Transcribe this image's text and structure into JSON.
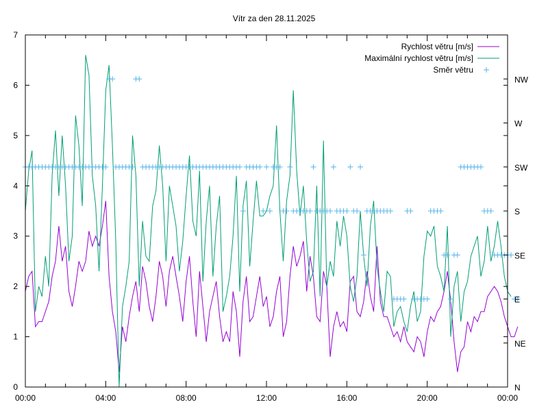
{
  "chart_data": {
    "type": "line",
    "title": "Vítr za den 28.11.2025",
    "xlabel": "",
    "ylabel": "",
    "x_tick_labels": [
      "00:00",
      "04:00",
      "08:00",
      "12:00",
      "16:00",
      "20:00",
      "00:00"
    ],
    "x_range_hours": [
      0,
      24
    ],
    "y_tick_labels": [
      "0",
      "1",
      "2",
      "3",
      "4",
      "5",
      "6",
      "7"
    ],
    "ylim": [
      0,
      7
    ],
    "y2_tick_labels": [
      "N",
      "NE",
      "E",
      "SE",
      "S",
      "SW",
      "W",
      "NW"
    ],
    "y2_range_direction_index": [
      0,
      8
    ],
    "grid": false,
    "legend_position": "top-right",
    "legend": [
      {
        "label": "Rychlost větru [m/s]",
        "style": "line",
        "color": "#9400d3"
      },
      {
        "label": "Maximální rychlost větru [m/s]",
        "style": "line",
        "color": "#009e73"
      },
      {
        "label": "Směr větru",
        "style": "points",
        "color": "#56b4e9"
      }
    ],
    "x_hours_step": 0.1667,
    "series": [
      {
        "name": "Rychlost větru [m/s]",
        "color": "#9400d3",
        "values": [
          1.9,
          2.2,
          2.3,
          1.2,
          1.3,
          1.3,
          1.5,
          1.7,
          2.2,
          2.5,
          3.2,
          2.5,
          2.8,
          1.9,
          1.6,
          2.0,
          2.5,
          2.3,
          2.5,
          3.1,
          2.8,
          3.0,
          2.8,
          3.2,
          3.7,
          2.2,
          1.5,
          1.1,
          0.3,
          1.2,
          0.9,
          1.4,
          1.8,
          2.1,
          1.5,
          2.4,
          2.1,
          1.6,
          1.3,
          1.8,
          2.5,
          2.2,
          1.6,
          2.3,
          2.6,
          2.2,
          1.8,
          1.3,
          2.1,
          2.6,
          1.7,
          1.0,
          2.3,
          1.6,
          0.9,
          1.5,
          1.8,
          2.1,
          1.4,
          0.9,
          1.1,
          0.9,
          1.9,
          1.5,
          0.6,
          1.7,
          2.2,
          1.3,
          1.4,
          1.8,
          2.2,
          1.6,
          1.8,
          1.2,
          1.4,
          1.9,
          2.2,
          1.0,
          1.3,
          2.2,
          2.8,
          2.4,
          2.6,
          2.9,
          1.9,
          2.6,
          2.2,
          1.4,
          1.3,
          2.3,
          2.0,
          0.6,
          1.2,
          1.5,
          1.2,
          1.3,
          1.1,
          2.1,
          2.2,
          1.5,
          1.4,
          1.7,
          2.3,
          1.8,
          1.5,
          2.8,
          1.7,
          1.4,
          1.4,
          1.2,
          1.0,
          1.1,
          0.9,
          1.2,
          0.9,
          0.8,
          0.7,
          1.0,
          0.9,
          0.6,
          1.1,
          1.4,
          1.3,
          1.5,
          1.6,
          1.9,
          2.3,
          1.7,
          0.9,
          0.3,
          0.7,
          0.8,
          1.3,
          1.1,
          1.4,
          1.3,
          1.5,
          1.5,
          1.8,
          1.9,
          2.0,
          1.9,
          1.7,
          1.4,
          1.2,
          1.0,
          1.0,
          1.2
        ]
      },
      {
        "name": "Maximální rychlost větru [m/s]",
        "color": "#009e73",
        "values": [
          3.5,
          4.3,
          4.7,
          1.5,
          2.0,
          1.8,
          2.6,
          2.0,
          4.2,
          5.1,
          3.8,
          5.0,
          4.0,
          2.5,
          3.0,
          5.4,
          4.8,
          3.6,
          6.6,
          6.2,
          4.2,
          3.6,
          2.3,
          4.0,
          5.9,
          6.4,
          4.8,
          2.9,
          0.0,
          1.6,
          2.0,
          2.5,
          5.0,
          4.2,
          2.0,
          3.3,
          2.6,
          2.5,
          3.6,
          3.9,
          4.8,
          4.0,
          2.5,
          4.0,
          3.6,
          3.2,
          2.3,
          2.9,
          3.8,
          4.6,
          3.3,
          3.0,
          4.3,
          2.1,
          3.3,
          4.0,
          2.2,
          3.2,
          3.8,
          1.5,
          1.8,
          2.2,
          3.0,
          4.2,
          1.9,
          3.6,
          4.1,
          2.4,
          3.3,
          4.1,
          3.4,
          3.4,
          3.5,
          3.8,
          4.0,
          5.2,
          3.5,
          2.5,
          3.7,
          4.2,
          5.9,
          4.3,
          3.4,
          4.0,
          2.9,
          2.1,
          2.3,
          4.0,
          1.8,
          4.9,
          2.0,
          2.5,
          2.2,
          3.3,
          2.8,
          3.4,
          3.0,
          2.0,
          1.7,
          2.2,
          3.5,
          2.6,
          2.0,
          3.2,
          3.7,
          2.4,
          1.9,
          1.5,
          2.3,
          2.2,
          1.2,
          1.5,
          1.6,
          1.3,
          1.1,
          1.6,
          1.9,
          1.3,
          1.5,
          2.6,
          3.1,
          3.0,
          3.2,
          2.4,
          2.2,
          1.9,
          3.2,
          1.0,
          2.0,
          2.3,
          1.3,
          1.9,
          2.1,
          2.6,
          2.8,
          3.0,
          2.2,
          2.5,
          3.2,
          2.5,
          2.8,
          3.3,
          2.8,
          2.2,
          1.9,
          1.8
        ]
      },
      {
        "name": "Směr větru",
        "color": "#56b4e9",
        "style": "points",
        "direction_labels": [
          "N",
          "NE",
          "E",
          "SE",
          "S",
          "SW",
          "W",
          "NW"
        ],
        "values_direction_index": [
          5,
          5,
          5,
          5,
          5,
          5,
          5,
          5,
          5,
          5,
          5,
          5,
          5,
          5,
          5,
          5,
          5,
          5,
          5,
          5,
          5,
          5,
          5,
          5,
          5,
          7,
          7,
          5,
          5,
          5,
          5,
          5,
          5,
          7,
          7,
          5,
          5,
          5,
          5,
          5,
          5,
          5,
          5,
          5,
          5,
          5,
          5,
          5,
          5,
          5,
          5,
          5,
          5,
          5,
          5,
          5,
          5,
          5,
          5,
          5,
          5,
          5,
          5,
          5,
          5,
          4,
          5,
          5,
          5,
          5,
          5,
          4,
          5,
          4,
          5,
          5,
          5,
          4,
          4,
          5,
          4,
          4,
          4,
          4,
          4,
          4,
          5,
          4,
          4,
          4,
          4,
          4,
          5,
          4,
          4,
          4,
          4,
          5,
          4,
          4,
          5,
          3,
          4,
          4,
          4,
          4,
          4,
          4,
          4,
          4,
          2,
          2,
          2,
          2,
          4,
          4,
          2,
          2,
          2,
          2,
          2,
          4,
          4,
          4,
          4,
          3,
          3,
          2,
          3,
          3,
          5,
          5,
          5,
          5,
          5,
          5,
          5,
          4,
          4,
          4,
          3,
          3,
          3,
          3,
          3,
          3,
          2,
          2
        ]
      }
    ]
  }
}
